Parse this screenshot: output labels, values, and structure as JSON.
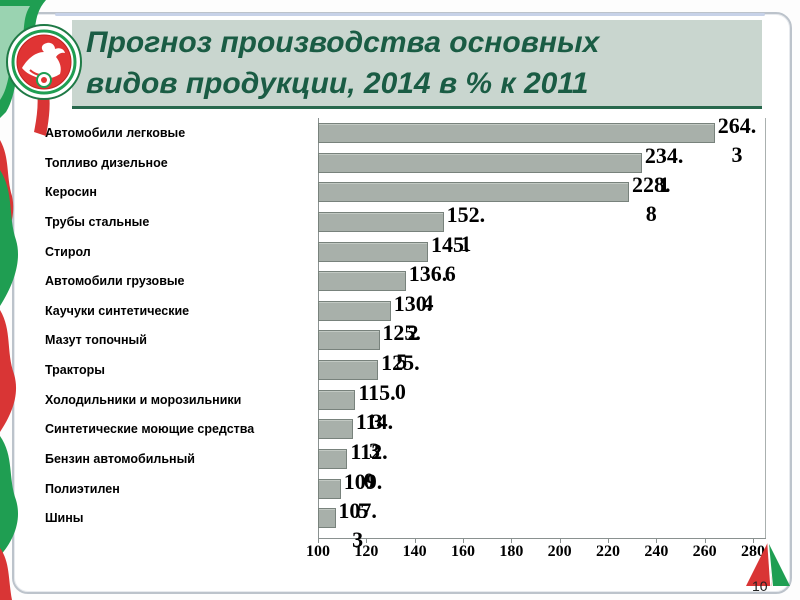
{
  "slide": {
    "title_line1": "Прогноз производства основных",
    "title_line2": "видов продукции, 2014 в % к 2011",
    "title_color": "#1a5c44",
    "page_number": "10",
    "accent_red": "#d93535",
    "accent_green": "#1f9e52"
  },
  "chart_data": {
    "type": "bar",
    "orientation": "horizontal",
    "title": "",
    "xlabel": "",
    "ylabel": "",
    "xlim": [
      100,
      280
    ],
    "xticks": [
      100,
      120,
      140,
      160,
      180,
      200,
      220,
      240,
      260,
      280
    ],
    "grid": false,
    "legend": false,
    "bar_color": "#a8b0aa",
    "bar_border": "#78827c",
    "label_format": "one_decimal_wrapped",
    "categories": [
      "Автомобили легковые",
      "Топливо дизельное",
      "Керосин",
      "Трубы стальные",
      "Стирол",
      "Автомобили грузовые",
      "Каучуки синтетические",
      "Мазут топочный",
      "Тракторы",
      "Холодильники и морозильники",
      "Синтетические моющие средства",
      "Бензин автомобильный",
      "Полиэтилен",
      "Шины"
    ],
    "values": [
      264.3,
      234.1,
      228.8,
      152.1,
      145.6,
      136.4,
      130.2,
      125.5,
      125.0,
      115.3,
      114.3,
      112.0,
      109.5,
      107.3
    ]
  }
}
